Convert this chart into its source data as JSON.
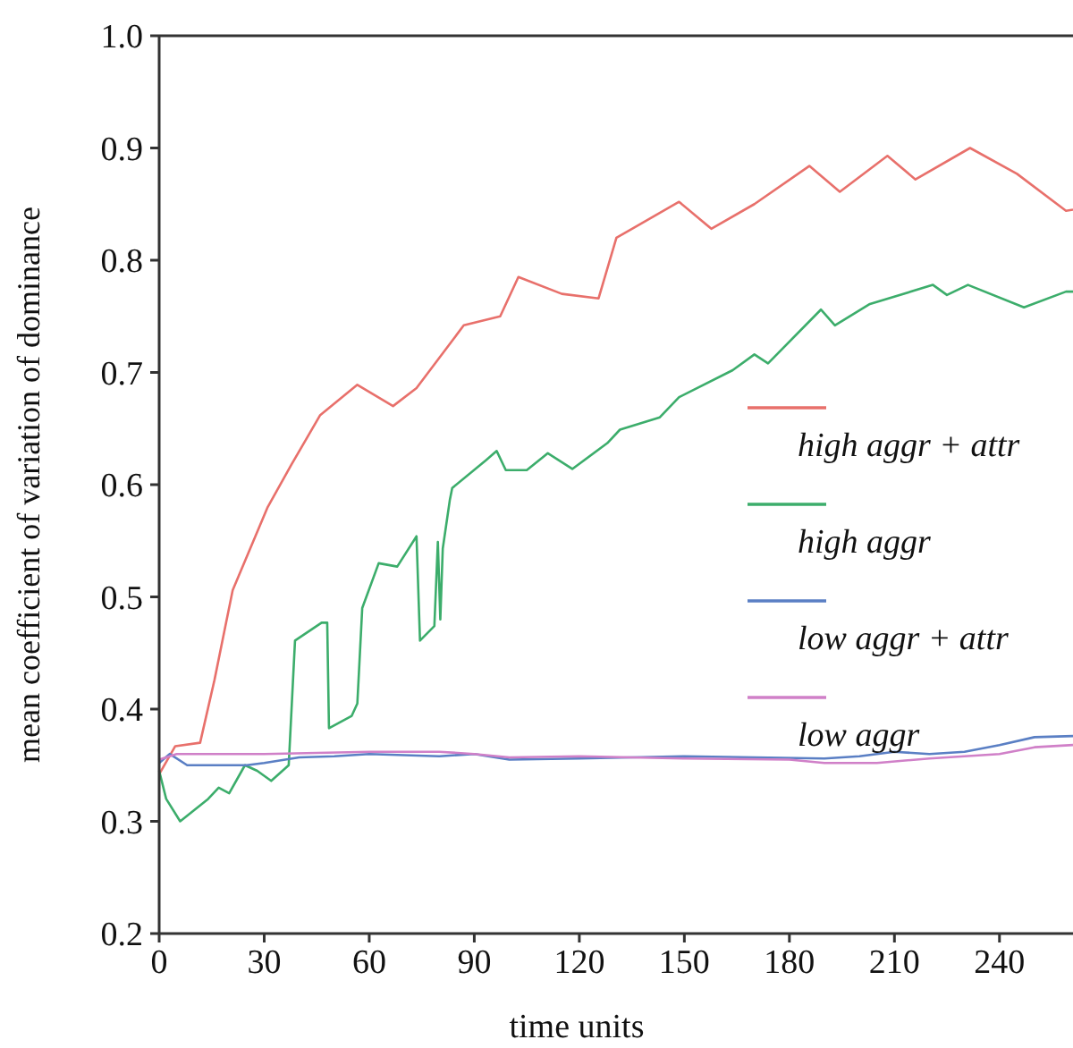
{
  "chart_data": {
    "type": "line",
    "xlabel": "time units",
    "ylabel": "mean coefficient of variation of dominance",
    "xlim": [
      0,
      261
    ],
    "ylim": [
      0.2,
      1.0
    ],
    "xticks": [
      0,
      30,
      60,
      90,
      120,
      150,
      180,
      210,
      240
    ],
    "yticks": [
      0.2,
      0.3,
      0.4,
      0.5,
      0.6,
      0.7,
      0.8,
      0.9,
      {
        "value": 1.0,
        "label": "1.0"
      }
    ],
    "grid": false,
    "legend": "right",
    "marker": "none",
    "line_style": "solid",
    "series": [
      {
        "name": "high aggr + attr",
        "color": "#e8706b",
        "x": [
          0,
          4.6,
          11.7,
          15.8,
          21,
          31,
          37.8,
          46,
          56.6,
          66.8,
          73.5,
          87,
          97.4,
          102.6,
          115,
          125.5,
          130.6,
          148.5,
          157.7,
          170,
          185.7,
          194.4,
          208,
          216,
          231.6,
          245,
          259,
          261
        ],
        "values": [
          0.342,
          0.367,
          0.37,
          0.426,
          0.506,
          0.58,
          0.618,
          0.662,
          0.689,
          0.67,
          0.686,
          0.742,
          0.75,
          0.785,
          0.77,
          0.766,
          0.82,
          0.852,
          0.828,
          0.85,
          0.884,
          0.861,
          0.893,
          0.872,
          0.9,
          0.877,
          0.844,
          0.845
        ]
      },
      {
        "name": "high aggr",
        "color": "#3cad6b",
        "x": [
          0,
          2,
          6,
          10,
          14,
          17,
          20,
          24.5,
          28,
          32,
          37,
          38.8,
          46.4,
          48,
          48.5,
          55,
          56.6,
          58,
          62.7,
          68,
          73.5,
          74.5,
          78.6,
          79.6,
          80.3,
          81,
          83,
          83.7,
          93.4,
          96.4,
          99,
          105,
          111,
          118,
          128,
          131.6,
          143,
          148.5,
          163.8,
          170,
          173.9,
          189,
          193,
          203,
          221,
          225,
          231,
          247,
          259,
          261
        ],
        "values": [
          0.345,
          0.32,
          0.3,
          0.31,
          0.32,
          0.33,
          0.325,
          0.35,
          0.345,
          0.336,
          0.35,
          0.461,
          0.477,
          0.477,
          0.383,
          0.394,
          0.405,
          0.49,
          0.53,
          0.527,
          0.554,
          0.461,
          0.474,
          0.549,
          0.48,
          0.543,
          0.586,
          0.597,
          0.622,
          0.63,
          0.613,
          0.613,
          0.628,
          0.614,
          0.637,
          0.649,
          0.66,
          0.678,
          0.702,
          0.716,
          0.708,
          0.756,
          0.742,
          0.761,
          0.778,
          0.769,
          0.778,
          0.758,
          0.772,
          0.772
        ]
      },
      {
        "name": "low aggr + attr",
        "color": "#5a7fc4",
        "x": [
          0,
          3,
          8,
          25,
          30,
          40,
          50,
          60,
          80,
          90,
          100,
          120,
          150,
          170,
          190,
          200,
          210,
          220,
          230,
          240,
          250,
          261
        ],
        "values": [
          0.352,
          0.36,
          0.35,
          0.35,
          0.352,
          0.357,
          0.358,
          0.36,
          0.358,
          0.36,
          0.355,
          0.356,
          0.358,
          0.357,
          0.356,
          0.358,
          0.362,
          0.36,
          0.362,
          0.368,
          0.375,
          0.376
        ]
      },
      {
        "name": "low aggr",
        "color": "#d080c8",
        "x": [
          0,
          5,
          30,
          60,
          80,
          90,
          100,
          120,
          150,
          180,
          190,
          205,
          220,
          240,
          250,
          261
        ],
        "values": [
          0.355,
          0.36,
          0.36,
          0.362,
          0.362,
          0.36,
          0.357,
          0.358,
          0.356,
          0.355,
          0.352,
          0.352,
          0.356,
          0.36,
          0.366,
          0.368
        ]
      }
    ]
  }
}
